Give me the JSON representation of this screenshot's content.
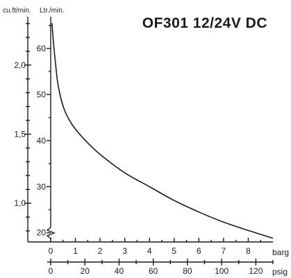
{
  "chart_data": {
    "type": "line",
    "title": "OF301 12/24V DC",
    "left_outer_axis": {
      "unit": "cu.ft/min.",
      "ticks": [
        1.0,
        1.5,
        2.0
      ],
      "tick_labels": [
        "1,0",
        "1,5",
        "2,0"
      ],
      "minor_step": 0.1,
      "range": [
        0.72,
        2.32
      ]
    },
    "left_inner_axis": {
      "unit": "Ltr./min.",
      "ticks": [
        20,
        30,
        40,
        50,
        60
      ],
      "tick_labels": [
        "20",
        "30",
        "40",
        "50",
        "60"
      ],
      "minor_step": 5,
      "range": [
        18,
        66
      ]
    },
    "x_bar_axis": {
      "unit": "barg",
      "ticks": [
        0,
        1,
        2,
        3,
        4,
        5,
        6,
        7,
        8
      ],
      "tick_labels": [
        "0",
        "1",
        "2",
        "3",
        "4",
        "5",
        "6",
        "7",
        "8"
      ],
      "minor_step": 0.5,
      "range": [
        0,
        9
      ]
    },
    "x_psig_axis": {
      "unit": "psig",
      "ticks": [
        0,
        20,
        40,
        60,
        80,
        100,
        120
      ],
      "tick_labels": [
        "0",
        "20",
        "40",
        "60",
        "80",
        "100",
        "120"
      ],
      "minor_step": 10,
      "range": [
        0,
        130
      ]
    },
    "series": [
      {
        "x": [
          0.05,
          0.1,
          0.2,
          0.3,
          0.5,
          0.7,
          1.0,
          1.5,
          2.0,
          3.0,
          4.0,
          5.0,
          6.0,
          7.0,
          8.0,
          9.0
        ],
        "y": [
          65.5,
          62,
          56.5,
          52,
          47.5,
          45,
          42.5,
          39.5,
          37,
          33,
          30,
          27,
          24.5,
          22.3,
          20.5,
          18.8
        ]
      }
    ]
  }
}
